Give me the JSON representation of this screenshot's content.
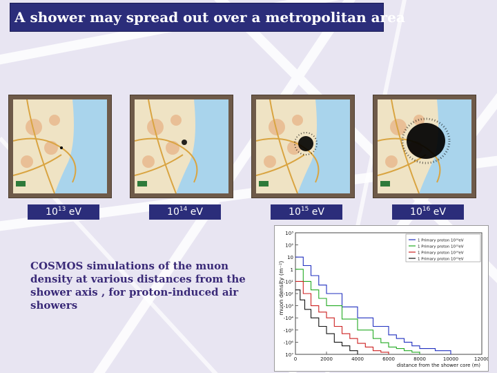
{
  "slide": {
    "title": "A shower may spread out over a metropolitan area",
    "description": "COSMOS simulations of the muon density at various distances from the shower axis , for proton-induced air showers"
  },
  "maps": [
    {
      "base": "10",
      "exp": "13",
      "unit": " eV"
    },
    {
      "base": "10",
      "exp": "14",
      "unit": " eV"
    },
    {
      "base": "10",
      "exp": "15",
      "unit": " eV"
    },
    {
      "base": "10",
      "exp": "16",
      "unit": " eV"
    }
  ],
  "chart_data": {
    "type": "line",
    "ylabel": "muon density (m⁻²)",
    "xlabel": "distance from the shower core (m)",
    "log_y": true,
    "xlim": [
      0,
      12000
    ],
    "ylim": [
      1e-07,
      1000
    ],
    "x_ticks": [
      "0",
      "2000",
      "4000",
      "6000",
      "8000",
      "10000",
      "12000"
    ],
    "y_ticks": [
      "10⁷",
      "10⁶",
      "10⁵",
      "10⁴",
      "10³",
      "10²",
      "10¹",
      "1",
      "10",
      "10²",
      "10³"
    ],
    "y_ticks_neg": [
      false,
      true,
      true,
      true,
      true,
      true,
      true,
      false,
      false,
      false,
      false
    ],
    "legend": [
      {
        "label": "1 Primary proton 10¹⁶eV",
        "color": "#1f2fbf"
      },
      {
        "label": "1 Primary proton 10¹⁵eV",
        "color": "#22aa22"
      },
      {
        "label": "1 Primary proton 10¹⁴eV",
        "color": "#cc1e1e"
      },
      {
        "label": "1 Primary proton 10¹³eV",
        "color": "#111111"
      }
    ],
    "series": [
      {
        "name": "1 Primary proton 10¹⁶eV",
        "color": "#1f2fbf",
        "x": [
          150,
          500,
          1000,
          1500,
          2000,
          3000,
          4000,
          5000,
          6000,
          6500,
          7000,
          7500,
          8000,
          9000,
          10000
        ],
        "y": [
          10,
          2,
          0.3,
          0.05,
          0.01,
          0.0008,
          0.0001,
          2e-05,
          4e-06,
          2e-06,
          1e-06,
          5e-07,
          3e-07,
          2e-07,
          1e-07
        ]
      },
      {
        "name": "1 Primary proton 10¹⁵eV",
        "color": "#22aa22",
        "x": [
          150,
          500,
          1000,
          1500,
          2000,
          3000,
          4000,
          5000,
          5500,
          6000,
          6500,
          7000,
          7500,
          8000
        ],
        "y": [
          1,
          0.1,
          0.02,
          0.004,
          0.001,
          8e-05,
          1e-05,
          2e-06,
          9e-07,
          4e-07,
          3e-07,
          2e-07,
          1.5e-07,
          1e-07
        ]
      },
      {
        "name": "1 Primary proton 10¹⁴eV",
        "color": "#cc1e1e",
        "x": [
          150,
          500,
          1000,
          1500,
          2000,
          2500,
          3000,
          3500,
          4000,
          4500,
          5000,
          5500,
          6000
        ],
        "y": [
          0.1,
          0.01,
          0.001,
          0.0003,
          0.0001,
          2e-05,
          5e-06,
          2e-06,
          8e-07,
          4e-07,
          2e-07,
          1.5e-07,
          1e-07
        ]
      },
      {
        "name": "1 Primary proton 10¹³eV",
        "color": "#111111",
        "x": [
          100,
          300,
          600,
          1000,
          1500,
          2000,
          2500,
          3000,
          3500,
          4000
        ],
        "y": [
          0.02,
          0.003,
          0.0005,
          0.0001,
          2e-05,
          5e-06,
          1e-06,
          5e-07,
          2e-07,
          1e-07
        ]
      }
    ]
  }
}
